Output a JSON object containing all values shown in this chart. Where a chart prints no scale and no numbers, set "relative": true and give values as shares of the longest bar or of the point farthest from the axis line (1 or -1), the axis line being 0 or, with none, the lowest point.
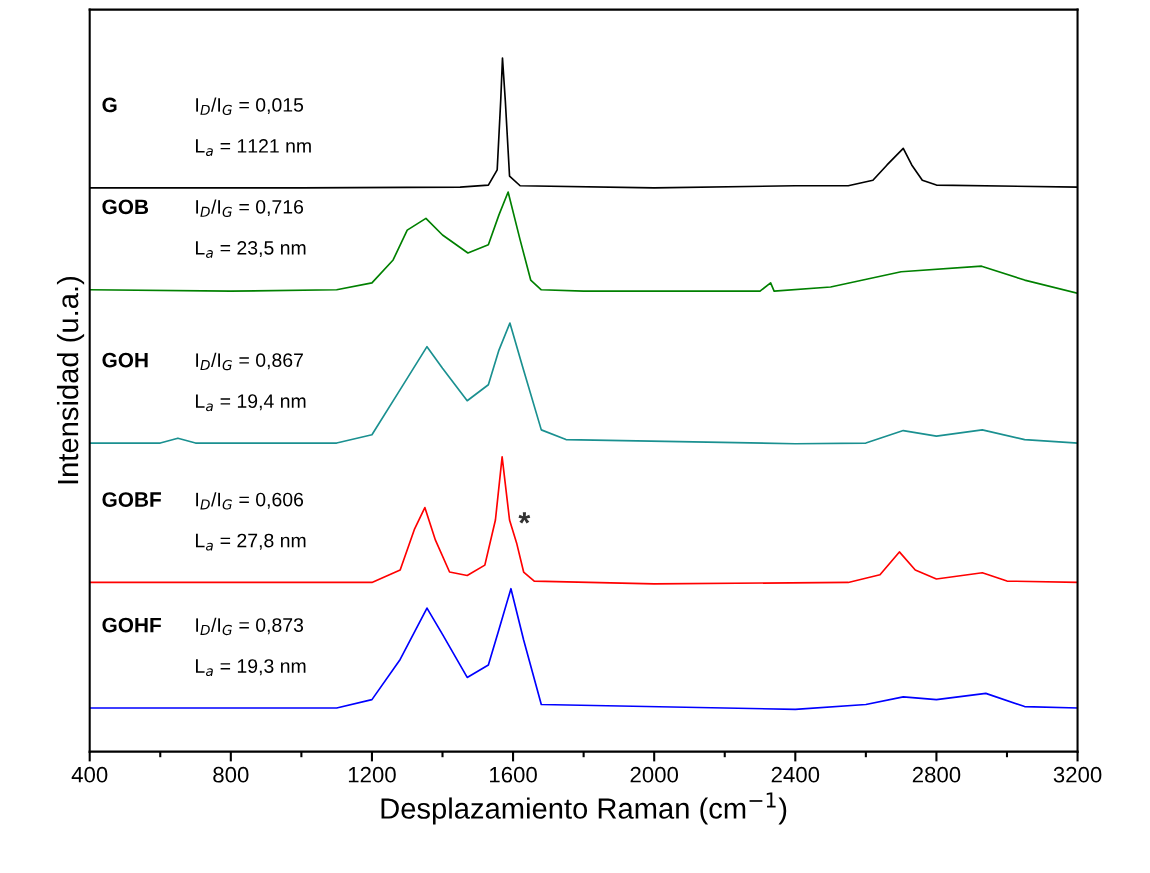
{
  "chart_data": {
    "type": "line",
    "relative": true,
    "xlabel": "Desplazamiento Raman (cm$^{−1}$)",
    "ylabel": "Intensidad (u.a.)",
    "xlim": [
      400,
      3200
    ],
    "xticks": [
      400,
      800,
      1200,
      1600,
      2000,
      2400,
      2800,
      3200
    ],
    "grid": false,
    "legend": false,
    "marker": "none",
    "line_style": "solid",
    "series": [
      {
        "color": "#000000",
        "x": [
          400,
          1000,
          1450,
          1530,
          1555,
          1565,
          1570,
          1578,
          1590,
          1620,
          2000,
          2400,
          2550,
          2620,
          2660,
          2706,
          2730,
          2760,
          2800,
          3200
        ],
        "values": [
          0.813,
          0.813,
          0.814,
          0.817,
          0.839,
          0.939,
          1,
          0.939,
          0.83,
          0.816,
          0.813,
          0.816,
          0.816,
          0.824,
          0.846,
          0.87,
          0.846,
          0.824,
          0.817,
          0.814
        ]
      },
      {
        "color": "#008000",
        "x": [
          400,
          800,
          1100,
          1200,
          1260,
          1300,
          1353,
          1400,
          1472,
          1530,
          1560,
          1586,
          1620,
          1650,
          1680,
          1800,
          2300,
          2330,
          2340,
          2500,
          2700,
          2928,
          3050,
          3200
        ],
        "values": [
          0.666,
          0.664,
          0.666,
          0.676,
          0.709,
          0.752,
          0.769,
          0.745,
          0.719,
          0.731,
          0.774,
          0.807,
          0.738,
          0.68,
          0.666,
          0.664,
          0.664,
          0.676,
          0.664,
          0.67,
          0.692,
          0.7,
          0.68,
          0.661
        ]
      },
      {
        "color": "#1a9090",
        "x": [
          400,
          600,
          650,
          700,
          1100,
          1200,
          1280,
          1356,
          1400,
          1470,
          1530,
          1560,
          1591,
          1630,
          1680,
          1750,
          2400,
          2600,
          2706,
          2800,
          2930,
          3050,
          3200
        ],
        "values": [
          0.445,
          0.445,
          0.452,
          0.445,
          0.445,
          0.457,
          0.522,
          0.584,
          0.553,
          0.506,
          0.529,
          0.579,
          0.618,
          0.55,
          0.464,
          0.45,
          0.444,
          0.445,
          0.463,
          0.455,
          0.464,
          0.45,
          0.445
        ]
      },
      {
        "color": "#ff0000",
        "x": [
          400,
          1200,
          1280,
          1320,
          1350,
          1380,
          1420,
          1470,
          1520,
          1550,
          1569,
          1590,
          1610,
          1630,
          1660,
          2000,
          2550,
          2640,
          2695,
          2740,
          2800,
          2930,
          3000,
          3200
        ],
        "values": [
          0.244,
          0.244,
          0.262,
          0.32,
          0.352,
          0.305,
          0.259,
          0.254,
          0.269,
          0.334,
          0.425,
          0.334,
          0.301,
          0.259,
          0.246,
          0.242,
          0.244,
          0.255,
          0.288,
          0.262,
          0.249,
          0.258,
          0.246,
          0.244
        ]
      },
      {
        "color": "#0000ff",
        "x": [
          400,
          1100,
          1200,
          1280,
          1356,
          1400,
          1470,
          1530,
          1560,
          1594,
          1630,
          1680,
          2400,
          2600,
          2706,
          2800,
          2940,
          3050,
          3200
        ],
        "values": [
          0.063,
          0.063,
          0.075,
          0.133,
          0.207,
          0.169,
          0.107,
          0.125,
          0.176,
          0.235,
          0.161,
          0.068,
          0.061,
          0.068,
          0.079,
          0.075,
          0.084,
          0.065,
          0.063
        ]
      }
    ],
    "annotations": [
      "G",
      "I$_{D}$/I$_{G}$ = 0,015",
      "L$_{a}$ = 1121 nm",
      "GOB",
      "I$_{D}$/I$_{G}$ = 0,716",
      "L$_{a}$ = 23,5 nm",
      "GOH",
      "I$_{D}$/I$_{G}$ = 0,867",
      "L$_{a}$ = 19,4 nm",
      "GOBF",
      "I$_{D}$/I$_{G}$ = 0,606",
      "L$_{a}$ = 27,8 nm",
      "GOHF",
      "I$_{D}$/I$_{G}$ = 0,873",
      "L$_{a}$ = 19,3 nm",
      "*"
    ]
  }
}
